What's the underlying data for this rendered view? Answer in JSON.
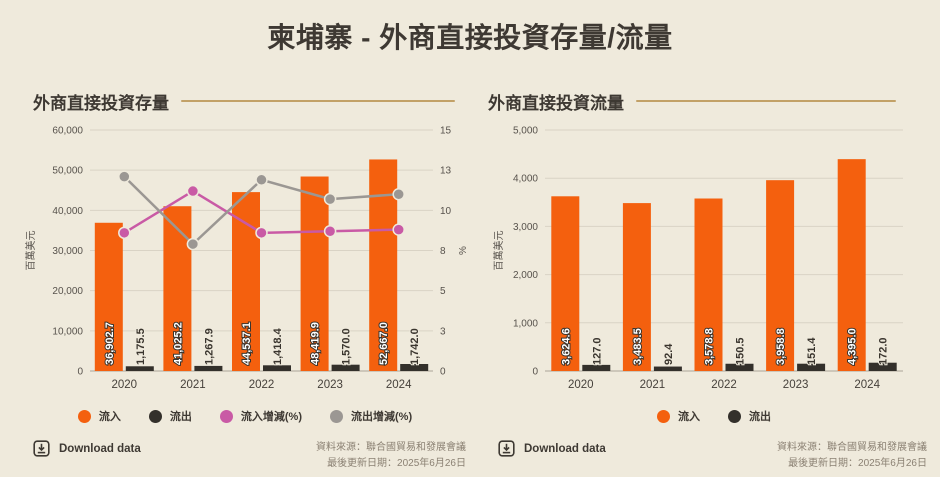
{
  "page": {
    "title": "柬埔寨 - 外商直接投資存量/流量"
  },
  "colors": {
    "background": "#EFEADC",
    "text": "#3E3933",
    "tick_text": "#57524C",
    "grid": "#D9D3C5",
    "axis": "#ABA497",
    "divider": "#C2A167",
    "source_text": "#8B8173",
    "inflow": "#F4600E",
    "outflow": "#33302B",
    "inflow_growth": "#C95AA5",
    "outflow_growth": "#9B9793"
  },
  "panels": [
    {
      "download_label": "Download data",
      "source_line1": "資料來源：聯合國貿易和發展會議",
      "source_line2": "最後更新日期：2025年6月26日"
    },
    {
      "download_label": "Download data",
      "source_line1": "資料來源：聯合國貿易和發展會議",
      "source_line2": "最後更新日期：2025年6月26日"
    }
  ],
  "chart_data": [
    {
      "type": "bar+line",
      "title": "外商直接投資存量",
      "ylabel": "百萬美元",
      "y2label": "%",
      "categories": [
        "2020",
        "2021",
        "2022",
        "2023",
        "2024"
      ],
      "ylim": [
        0,
        60000
      ],
      "ytick_values": [
        0,
        10000,
        20000,
        30000,
        40000,
        50000,
        60000
      ],
      "ytick_labels": [
        "0",
        "10,000",
        "20,000",
        "30,000",
        "40,000",
        "50,000",
        "60,000"
      ],
      "y2lim": [
        0,
        15
      ],
      "y2tick_labels": [
        "0",
        "3",
        "5",
        "8",
        "10",
        "13",
        "15"
      ],
      "grid": true,
      "legend_position": "bottom",
      "series": [
        {
          "name": "流入",
          "type": "bar",
          "axis": "left",
          "color": "#F4600E",
          "values": [
            36902.7,
            41025.2,
            44537.1,
            48419.9,
            52667.0
          ],
          "labels": [
            "36,902.7",
            "41,025.2",
            "44,537.1",
            "48,419.9",
            "52,667.0"
          ],
          "label_color": "#FFFFFF",
          "label_outline": "#3A352E"
        },
        {
          "name": "流出",
          "type": "bar",
          "axis": "left",
          "color": "#33302B",
          "values": [
            1175.5,
            1267.9,
            1418.4,
            1570.0,
            1742.0
          ],
          "labels": [
            "1,175.5",
            "1,267.9",
            "1,418.4",
            "1,570.0",
            "1,742.0"
          ],
          "label_color": "#3A352E",
          "label_outline": "#EFEADC"
        },
        {
          "name": "流入增減(%)",
          "type": "line",
          "axis": "right",
          "color": "#C95AA5",
          "values": [
            8.6,
            11.2,
            8.6,
            8.7,
            8.8
          ]
        },
        {
          "name": "流出增減(%)",
          "type": "line",
          "axis": "right",
          "color": "#9B9793",
          "values": [
            12.1,
            7.9,
            11.9,
            10.7,
            11.0
          ]
        }
      ]
    },
    {
      "type": "bar",
      "title": "外商直接投資流量",
      "ylabel": "百萬美元",
      "categories": [
        "2020",
        "2021",
        "2022",
        "2023",
        "2024"
      ],
      "ylim": [
        0,
        5000
      ],
      "ytick_values": [
        0,
        1000,
        2000,
        3000,
        4000,
        5000
      ],
      "ytick_labels": [
        "0",
        "1,000",
        "2,000",
        "3,000",
        "4,000",
        "5,000"
      ],
      "grid": true,
      "legend_position": "bottom",
      "series": [
        {
          "name": "流入",
          "type": "bar",
          "axis": "left",
          "color": "#F4600E",
          "values": [
            3624.6,
            3483.5,
            3578.8,
            3958.8,
            4395.0
          ],
          "labels": [
            "3,624.6",
            "3,483.5",
            "3,578.8",
            "3,958.8",
            "4,395.0"
          ],
          "label_color": "#FFFFFF",
          "label_outline": "#3A352E"
        },
        {
          "name": "流出",
          "type": "bar",
          "axis": "left",
          "color": "#33302B",
          "values": [
            127.0,
            92.4,
            150.5,
            151.4,
            172.0
          ],
          "labels": [
            "127.0",
            "92.4",
            "150.5",
            "151.4",
            "172.0"
          ],
          "label_color": "#3A352E",
          "label_outline": "#EFEADC"
        }
      ]
    }
  ]
}
